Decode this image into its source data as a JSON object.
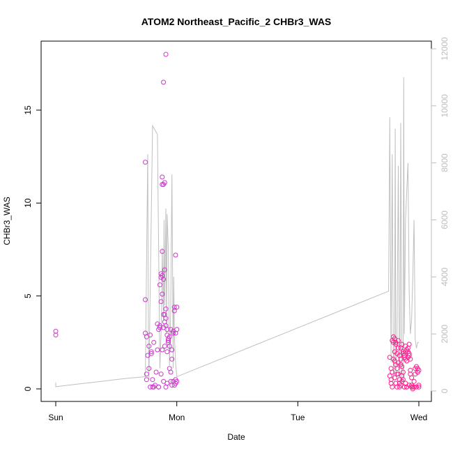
{
  "chart_data": {
    "type": "scatter",
    "title": "ATOM2 Northeast_Pacific_2 CHBr3_WAS",
    "xlabel": "Date",
    "ylabel": "CHBr3_WAS",
    "x_ticks": [
      "Sun",
      "Mon",
      "Tue",
      "Wed"
    ],
    "x_range_days": [
      0,
      3
    ],
    "ylim": [
      0,
      18.6
    ],
    "y_ticks": [
      0,
      5,
      10,
      15
    ],
    "y2lim": [
      0,
      12400
    ],
    "y2_ticks": [
      0,
      2000,
      4000,
      6000,
      8000,
      10000,
      12000
    ],
    "colors": {
      "points_mon": "#cc33cc",
      "points_wed": "#ff1a8c",
      "line": "#bfbfbf",
      "right_axis": "#bdbdbd"
    },
    "series": [
      {
        "kind": "points",
        "x": [
          0.0,
          0.0,
          0.74,
          0.74,
          0.74,
          0.75,
          0.75,
          0.75,
          0.76,
          0.77,
          0.77,
          0.78,
          0.78,
          0.79,
          0.79,
          0.8,
          0.8,
          0.81,
          0.81,
          0.82,
          0.83,
          0.84,
          0.84,
          0.85,
          0.85,
          0.85,
          0.86,
          0.86,
          0.86,
          0.87,
          0.87,
          0.87,
          0.87,
          0.88,
          0.88,
          0.88,
          0.88,
          0.89,
          0.89,
          0.89,
          0.89,
          0.9,
          0.9,
          0.9,
          0.9,
          0.91,
          0.91,
          0.91,
          0.91,
          0.92,
          0.92,
          0.92,
          0.92,
          0.93,
          0.93,
          0.93,
          0.94,
          0.94,
          0.94,
          0.95,
          0.95,
          0.95,
          0.96,
          0.96,
          0.96,
          0.97,
          0.97,
          0.97,
          0.98,
          0.98,
          0.98,
          0.99,
          0.99,
          0.99,
          0.99,
          1.0,
          1.0,
          1.0,
          0.88,
          0.88,
          0.89,
          0.91,
          0.9,
          0.89
        ],
        "y": [
          3.1,
          2.9,
          12.2,
          4.8,
          3.0,
          2.8,
          0.8,
          0.5,
          1.8,
          1.1,
          2.3,
          2.9,
          0.1,
          2.0,
          1.9,
          0.5,
          0.1,
          0.1,
          2.5,
          0.2,
          0.9,
          3.5,
          2.1,
          0.1,
          3.2,
          0.1,
          3.4,
          3.3,
          5.6,
          6.0,
          4.7,
          6.2,
          0.8,
          7.4,
          6.1,
          5.1,
          2.1,
          3.3,
          5.9,
          4.0,
          0.4,
          6.4,
          4.0,
          3.6,
          2.3,
          3.8,
          3.4,
          4.3,
          0.1,
          3.2,
          2.9,
          2.0,
          0.3,
          2.5,
          2.7,
          2.6,
          1.1,
          2.3,
          2.8,
          0.4,
          3.2,
          0.9,
          2.1,
          0.2,
          1.6,
          3.0,
          3.1,
          0.4,
          4.2,
          4.4,
          0.2,
          0.3,
          0.5,
          3.0,
          7.2,
          4.4,
          3.2,
          0.4,
          11.0,
          11.4,
          16.5,
          18.0,
          11.1,
          11.0
        ],
        "color": "#cc33cc"
      },
      {
        "kind": "points",
        "x": [
          2.76,
          2.76,
          2.77,
          2.77,
          2.77,
          2.78,
          2.78,
          2.78,
          2.79,
          2.79,
          2.79,
          2.8,
          2.8,
          2.8,
          2.8,
          2.81,
          2.81,
          2.81,
          2.82,
          2.82,
          2.82,
          2.83,
          2.83,
          2.83,
          2.84,
          2.84,
          2.84,
          2.85,
          2.85,
          2.85,
          2.86,
          2.86,
          2.86,
          2.87,
          2.87,
          2.87,
          2.88,
          2.88,
          2.88,
          2.89,
          2.89,
          2.89,
          2.9,
          2.9,
          2.9,
          2.91,
          2.91,
          2.91,
          2.92,
          2.92,
          2.92,
          2.93,
          2.93,
          2.93,
          2.94,
          2.94,
          2.95,
          2.95,
          2.96,
          2.96,
          2.97,
          2.97,
          2.98,
          2.98,
          2.99,
          2.99,
          3.0,
          3.0,
          3.0,
          2.82,
          2.84,
          2.86,
          2.88,
          2.9,
          2.92,
          2.94,
          2.81,
          2.83,
          2.85,
          2.87,
          2.89,
          2.91
        ],
        "y": [
          1.7,
          0.7,
          1.1,
          0.3,
          0.5,
          0.1,
          0.9,
          2.6,
          2.8,
          2.5,
          1.6,
          1.5,
          0.6,
          2.0,
          2.7,
          1.3,
          0.3,
          2.5,
          1.9,
          0.1,
          1.1,
          2.2,
          0.8,
          2.6,
          1.8,
          0.5,
          0.1,
          2.2,
          1.6,
          0.2,
          2.4,
          1.2,
          0.7,
          2.0,
          1.9,
          0.5,
          1.8,
          1.7,
          0.1,
          2.0,
          1.6,
          0.3,
          2.1,
          1.5,
          0.1,
          2.2,
          2.0,
          1.7,
          2.4,
          1.8,
          1.9,
          1.0,
          0.8,
          1.6,
          0.2,
          0.6,
          0.0,
          0.1,
          0.4,
          0.1,
          1.1,
          0.8,
          1.2,
          0.1,
          1.1,
          0.9,
          1.0,
          0.1,
          0.2,
          0.8,
          0.3,
          0.4,
          0.1,
          0.1,
          0.2,
          0.1,
          2.4,
          1.4,
          1.3,
          0.9,
          2.3,
          1.7
        ],
        "color": "#ff1a8c"
      },
      {
        "kind": "line",
        "axis": "right",
        "x": [
          0.0,
          0.0,
          0.1,
          0.2,
          0.3,
          0.4,
          0.5,
          0.6,
          0.74,
          0.76,
          0.765,
          0.77,
          0.8,
          0.84,
          0.86,
          0.87,
          0.875,
          0.88,
          0.89,
          0.895,
          0.9,
          0.91,
          0.915,
          0.92,
          0.93,
          0.94,
          0.95,
          0.96,
          0.97,
          0.975,
          0.98,
          0.99,
          1.0,
          2.75,
          2.76,
          2.77,
          2.78,
          2.79,
          2.795,
          2.8,
          2.805,
          2.81,
          2.82,
          2.83,
          2.84,
          2.845,
          2.85,
          2.86,
          2.87,
          2.875,
          2.88,
          2.89,
          2.9,
          2.91,
          2.92,
          2.93,
          2.94,
          2.95,
          2.96,
          2.97,
          2.98,
          2.99,
          3.0
        ],
        "y": [
          300,
          150,
          200,
          250,
          300,
          350,
          400,
          450,
          500,
          8300,
          2000,
          400,
          9300,
          9000,
          800,
          2000,
          3000,
          5000,
          2500,
          6000,
          3000,
          6400,
          2000,
          6200,
          5000,
          900,
          3000,
          7600,
          800,
          4000,
          2000,
          1000,
          500,
          3500,
          9600,
          1000,
          8300,
          400,
          1000,
          2000,
          9200,
          600,
          1800,
          7900,
          500,
          2000,
          9400,
          300,
          400,
          11000,
          2000,
          6000,
          7000,
          8000,
          3500,
          2000,
          2500,
          4000,
          6000,
          1800,
          1500,
          1700,
          1700
        ]
      }
    ]
  }
}
